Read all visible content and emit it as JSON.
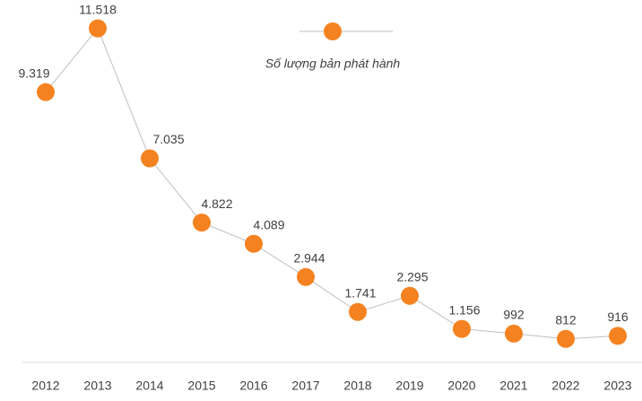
{
  "chart_data": {
    "type": "line",
    "categories": [
      "2012",
      "2013",
      "2014",
      "2015",
      "2016",
      "2017",
      "2018",
      "2019",
      "2020",
      "2021",
      "2022",
      "2023"
    ],
    "series": [
      {
        "name": "Số lượng bản phát hành",
        "color": "#f58220",
        "values": [
          9319,
          11518,
          7035,
          4822,
          4089,
          2944,
          1741,
          2295,
          1156,
          992,
          812,
          916
        ],
        "value_labels": [
          "9.319",
          "11.518",
          "7.035",
          "4.822",
          "4.089",
          "2.944",
          "1.741",
          "2.295",
          "1.156",
          "992",
          "812",
          "916"
        ]
      }
    ],
    "ylim": [
      0,
      12000
    ],
    "grid": false,
    "legend": "top"
  }
}
